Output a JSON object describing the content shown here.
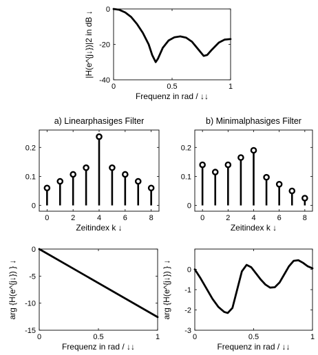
{
  "chart_data": [
    {
      "id": "magnitude",
      "type": "line",
      "title": "",
      "xlabel": "Frequenz in rad / ↓↓",
      "ylabel": "|H(e^{j↓})|2 in dB ↓",
      "xlim": [
        0,
        1
      ],
      "ylim": [
        -40,
        0
      ],
      "xticks": [
        0,
        0.5,
        1
      ],
      "xtick_labels": [
        "0",
        "0.5",
        "1"
      ],
      "yticks": [
        0,
        -20,
        -40
      ],
      "ytick_labels": [
        "0",
        "-20",
        "-40"
      ],
      "series": [
        {
          "x": [
            0,
            0.05,
            0.1,
            0.15,
            0.2,
            0.25,
            0.3,
            0.33,
            0.36,
            0.38,
            0.42,
            0.47,
            0.52,
            0.57,
            0.62,
            0.67,
            0.72,
            0.77,
            0.8,
            0.84,
            0.9,
            0.95,
            1.0
          ],
          "y": [
            0,
            -0.5,
            -2,
            -4.5,
            -8.5,
            -13.5,
            -20,
            -26,
            -30,
            -28,
            -22,
            -17.8,
            -16,
            -15.5,
            -16.2,
            -18.5,
            -22.5,
            -26.5,
            -26,
            -23,
            -19,
            -17.3,
            -17
          ]
        }
      ]
    },
    {
      "id": "impulse-linear",
      "type": "stem",
      "title": "a) Linearphasiges Filter",
      "xlabel": "Zeitindex k ↓",
      "ylabel": "",
      "xlim": [
        -0.6,
        8.6
      ],
      "ylim": [
        -0.02,
        0.26
      ],
      "xticks": [
        0,
        2,
        4,
        6,
        8
      ],
      "xtick_labels": [
        "0",
        "2",
        "4",
        "6",
        "8"
      ],
      "yticks": [
        0,
        0.1,
        0.2
      ],
      "ytick_labels": [
        "0",
        "0.1",
        "0.2"
      ],
      "series": [
        {
          "x": [
            0,
            1,
            2,
            3,
            4,
            5,
            6,
            7,
            8
          ],
          "y": [
            0.06,
            0.083,
            0.107,
            0.13,
            0.237,
            0.13,
            0.107,
            0.083,
            0.06
          ]
        }
      ]
    },
    {
      "id": "impulse-minimum",
      "type": "stem",
      "title": "b) Minimalphasiges Filter",
      "xlabel": "Zeitindex k ↓",
      "ylabel": "",
      "xlim": [
        -0.6,
        8.6
      ],
      "ylim": [
        -0.02,
        0.26
      ],
      "xticks": [
        0,
        2,
        4,
        6,
        8
      ],
      "xtick_labels": [
        "0",
        "2",
        "4",
        "6",
        "8"
      ],
      "yticks": [
        0,
        0.1,
        0.2
      ],
      "ytick_labels": [
        "0",
        "0.1",
        "0.2"
      ],
      "series": [
        {
          "x": [
            0,
            1,
            2,
            3,
            4,
            5,
            6,
            7,
            8
          ],
          "y": [
            0.14,
            0.115,
            0.14,
            0.165,
            0.19,
            0.097,
            0.073,
            0.05,
            0.025
          ]
        }
      ]
    },
    {
      "id": "phase-linear",
      "type": "line",
      "title": "",
      "xlabel": "Frequenz in rad / ↓↓",
      "ylabel": "arg {H(e^{j↓}) } ↓",
      "xlim": [
        0,
        1
      ],
      "ylim": [
        -15,
        0
      ],
      "xticks": [
        0,
        0.5,
        1
      ],
      "xtick_labels": [
        "0",
        "0.5",
        "1"
      ],
      "yticks": [
        0,
        -5,
        -10,
        -15
      ],
      "ytick_labels": [
        "0",
        "-5",
        "-10",
        "-15"
      ],
      "series": [
        {
          "x": [
            0,
            1
          ],
          "y": [
            0,
            -12.57
          ]
        }
      ]
    },
    {
      "id": "phase-minimum",
      "type": "line",
      "title": "",
      "xlabel": "Frequenz in rad / ↓↓",
      "ylabel": "arg {H(e^{j↓}) } ↓",
      "xlim": [
        0,
        1
      ],
      "ylim": [
        -3,
        1
      ],
      "xticks": [
        0,
        0.5,
        1
      ],
      "xtick_labels": [
        "0",
        "0.5",
        "1"
      ],
      "yticks": [
        0,
        -1,
        -2,
        -3
      ],
      "ytick_labels": [
        "0",
        "-1",
        "-2",
        "-3"
      ],
      "series": [
        {
          "x": [
            0,
            0.05,
            0.1,
            0.15,
            0.2,
            0.25,
            0.28,
            0.32,
            0.36,
            0.4,
            0.44,
            0.48,
            0.52,
            0.56,
            0.6,
            0.64,
            0.68,
            0.72,
            0.76,
            0.8,
            0.84,
            0.88,
            0.92,
            0.96,
            1.0
          ],
          "y": [
            0,
            -0.45,
            -0.95,
            -1.45,
            -1.85,
            -2.1,
            -2.15,
            -1.9,
            -1.0,
            -0.1,
            0.22,
            0.1,
            -0.2,
            -0.5,
            -0.75,
            -0.9,
            -0.88,
            -0.65,
            -0.25,
            0.15,
            0.42,
            0.45,
            0.32,
            0.15,
            0.05
          ]
        }
      ]
    }
  ]
}
